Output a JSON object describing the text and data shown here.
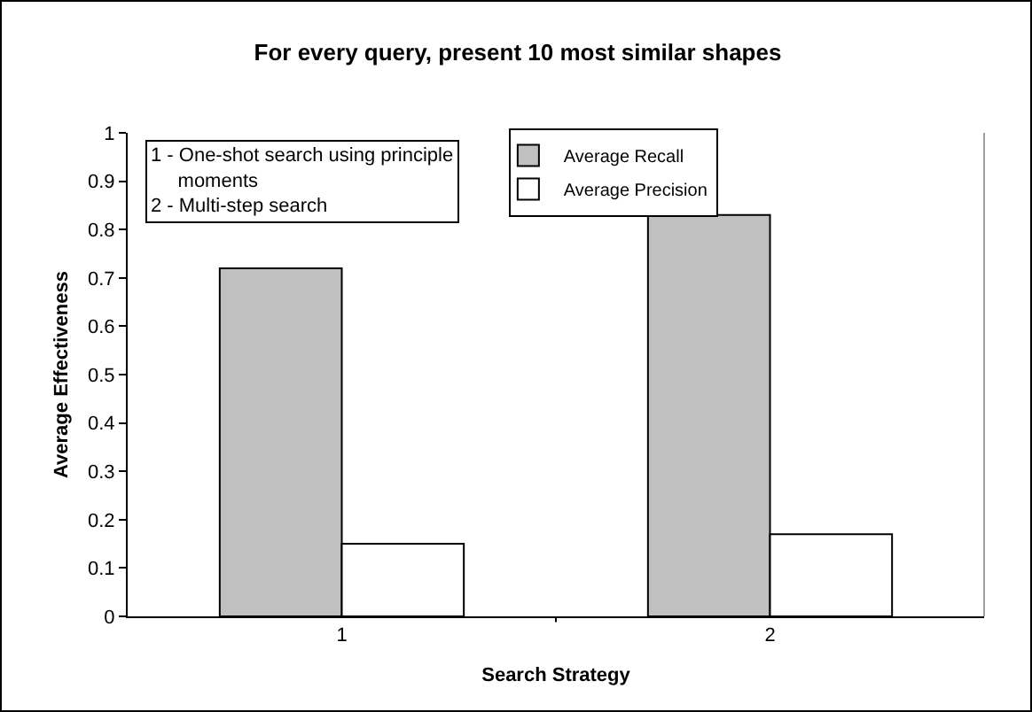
{
  "chart_data": {
    "type": "bar",
    "title": "For every query, present 10 most similar shapes",
    "xlabel": "Search Strategy",
    "ylabel": "Average Effectiveness",
    "categories": [
      "1",
      "2"
    ],
    "series": [
      {
        "name": "Average Recall",
        "color": "#c0c0c0",
        "values": [
          0.72,
          0.83
        ]
      },
      {
        "name": "Average Precision",
        "color": "#ffffff",
        "values": [
          0.15,
          0.17
        ]
      }
    ],
    "ylim": [
      0,
      1
    ],
    "yticks": [
      0,
      0.1,
      0.2,
      0.3,
      0.4,
      0.5,
      0.6,
      0.7,
      0.8,
      0.9,
      1
    ],
    "grid": false,
    "legend": "top",
    "annotations": [
      "1 - One-shot search using principle\n     moments\n2 - Multi-step search"
    ]
  }
}
